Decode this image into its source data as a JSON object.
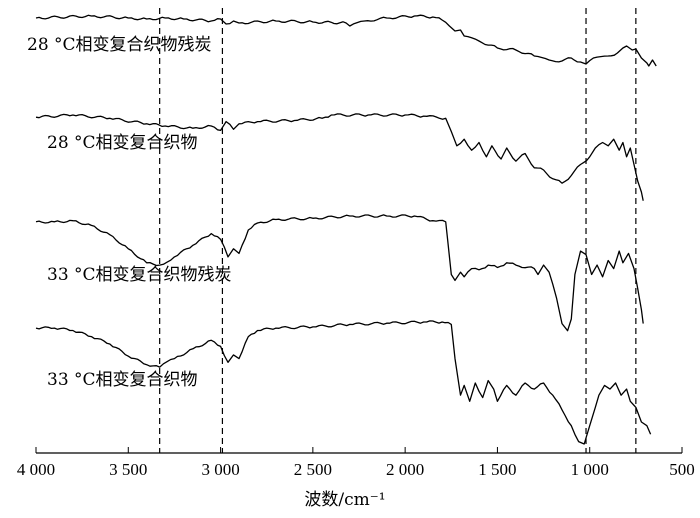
{
  "chart_data": {
    "type": "line",
    "xlabel": "波数/cm⁻¹",
    "ylabel": "",
    "xlim": [
      4000,
      500
    ],
    "xticks": [
      4000,
      3500,
      3000,
      2500,
      2000,
      1500,
      1000,
      500
    ],
    "xtick_labels": [
      "4 000",
      "3 500",
      "3 000",
      "2 500",
      "2 000",
      "1 500",
      "1 000",
      "500"
    ],
    "reference_lines_x": [
      3330,
      2990,
      1020,
      750
    ],
    "series": [
      {
        "name": "28 °C相变复合织物残炭",
        "points": [
          [
            4000,
            0.02
          ],
          [
            3700,
            0.0
          ],
          [
            3500,
            0.02
          ],
          [
            3400,
            0.03
          ],
          [
            3300,
            0.02
          ],
          [
            3200,
            0.03
          ],
          [
            3050,
            0.05
          ],
          [
            3000,
            0.03
          ],
          [
            2970,
            0.08
          ],
          [
            2930,
            0.05
          ],
          [
            2900,
            0.07
          ],
          [
            2700,
            0.05
          ],
          [
            2500,
            0.06
          ],
          [
            2320,
            0.07
          ],
          [
            2300,
            0.1
          ],
          [
            2220,
            0.05
          ],
          [
            2100,
            0.02
          ],
          [
            1950,
            0.0
          ],
          [
            1850,
            0.01
          ],
          [
            1800,
            0.04
          ],
          [
            1760,
            0.1
          ],
          [
            1730,
            0.15
          ],
          [
            1700,
            0.14
          ],
          [
            1680,
            0.2
          ],
          [
            1600,
            0.25
          ],
          [
            1500,
            0.32
          ],
          [
            1400,
            0.34
          ],
          [
            1300,
            0.4
          ],
          [
            1220,
            0.44
          ],
          [
            1150,
            0.45
          ],
          [
            1100,
            0.42
          ],
          [
            1050,
            0.46
          ],
          [
            1020,
            0.48
          ],
          [
            980,
            0.42
          ],
          [
            900,
            0.4
          ],
          [
            850,
            0.37
          ],
          [
            820,
            0.32
          ],
          [
            800,
            0.3
          ],
          [
            770,
            0.34
          ],
          [
            750,
            0.33
          ],
          [
            720,
            0.42
          ],
          [
            690,
            0.47
          ],
          [
            680,
            0.5
          ],
          [
            660,
            0.44
          ],
          [
            640,
            0.5
          ]
        ]
      },
      {
        "name": "28 °C相变复合织物",
        "points": [
          [
            4000,
            0.02
          ],
          [
            3800,
            0.0
          ],
          [
            3600,
            0.03
          ],
          [
            3400,
            0.08
          ],
          [
            3300,
            0.1
          ],
          [
            3150,
            0.12
          ],
          [
            3050,
            0.1
          ],
          [
            3000,
            0.14
          ],
          [
            2970,
            0.06
          ],
          [
            2930,
            0.13
          ],
          [
            2900,
            0.08
          ],
          [
            2800,
            0.06
          ],
          [
            2600,
            0.05
          ],
          [
            2450,
            0.03
          ],
          [
            2400,
            0.0
          ],
          [
            2200,
            0.0
          ],
          [
            2000,
            0.0
          ],
          [
            1900,
            0.01
          ],
          [
            1780,
            0.03
          ],
          [
            1750,
            0.15
          ],
          [
            1720,
            0.28
          ],
          [
            1680,
            0.22
          ],
          [
            1640,
            0.32
          ],
          [
            1600,
            0.25
          ],
          [
            1560,
            0.38
          ],
          [
            1530,
            0.28
          ],
          [
            1480,
            0.4
          ],
          [
            1450,
            0.3
          ],
          [
            1400,
            0.42
          ],
          [
            1350,
            0.35
          ],
          [
            1300,
            0.48
          ],
          [
            1250,
            0.5
          ],
          [
            1200,
            0.58
          ],
          [
            1150,
            0.62
          ],
          [
            1100,
            0.55
          ],
          [
            1050,
            0.45
          ],
          [
            1000,
            0.38
          ],
          [
            970,
            0.3
          ],
          [
            930,
            0.25
          ],
          [
            900,
            0.28
          ],
          [
            870,
            0.22
          ],
          [
            840,
            0.32
          ],
          [
            820,
            0.25
          ],
          [
            800,
            0.38
          ],
          [
            780,
            0.3
          ],
          [
            760,
            0.45
          ],
          [
            740,
            0.6
          ],
          [
            720,
            0.7
          ],
          [
            710,
            0.78
          ]
        ]
      },
      {
        "name": "33 °C相变复合织物残炭",
        "points": [
          [
            4000,
            0.05
          ],
          [
            3900,
            0.05
          ],
          [
            3800,
            0.04
          ],
          [
            3700,
            0.08
          ],
          [
            3600,
            0.16
          ],
          [
            3500,
            0.28
          ],
          [
            3400,
            0.4
          ],
          [
            3330,
            0.42
          ],
          [
            3250,
            0.35
          ],
          [
            3150,
            0.25
          ],
          [
            3050,
            0.15
          ],
          [
            3000,
            0.2
          ],
          [
            2960,
            0.35
          ],
          [
            2930,
            0.28
          ],
          [
            2900,
            0.32
          ],
          [
            2850,
            0.12
          ],
          [
            2800,
            0.06
          ],
          [
            2700,
            0.03
          ],
          [
            2500,
            0.02
          ],
          [
            2300,
            0.0
          ],
          [
            2100,
            0.0
          ],
          [
            1950,
            0.0
          ],
          [
            1850,
            0.04
          ],
          [
            1780,
            0.05
          ],
          [
            1770,
            0.2
          ],
          [
            1750,
            0.5
          ],
          [
            1730,
            0.55
          ],
          [
            1700,
            0.48
          ],
          [
            1680,
            0.52
          ],
          [
            1640,
            0.45
          ],
          [
            1600,
            0.46
          ],
          [
            1550,
            0.42
          ],
          [
            1500,
            0.44
          ],
          [
            1450,
            0.4
          ],
          [
            1400,
            0.42
          ],
          [
            1300,
            0.45
          ],
          [
            1280,
            0.5
          ],
          [
            1250,
            0.42
          ],
          [
            1220,
            0.48
          ],
          [
            1180,
            0.7
          ],
          [
            1150,
            0.92
          ],
          [
            1120,
            0.98
          ],
          [
            1100,
            0.88
          ],
          [
            1080,
            0.5
          ],
          [
            1050,
            0.3
          ],
          [
            1020,
            0.33
          ],
          [
            990,
            0.5
          ],
          [
            960,
            0.42
          ],
          [
            930,
            0.52
          ],
          [
            900,
            0.38
          ],
          [
            870,
            0.45
          ],
          [
            840,
            0.3
          ],
          [
            820,
            0.4
          ],
          [
            790,
            0.32
          ],
          [
            760,
            0.45
          ],
          [
            740,
            0.62
          ],
          [
            720,
            0.8
          ],
          [
            710,
            0.92
          ]
        ]
      },
      {
        "name": "33 °C相变复合织物",
        "points": [
          [
            4000,
            0.05
          ],
          [
            3900,
            0.05
          ],
          [
            3800,
            0.07
          ],
          [
            3700,
            0.12
          ],
          [
            3600,
            0.18
          ],
          [
            3500,
            0.28
          ],
          [
            3400,
            0.35
          ],
          [
            3330,
            0.37
          ],
          [
            3250,
            0.3
          ],
          [
            3150,
            0.22
          ],
          [
            3050,
            0.15
          ],
          [
            3000,
            0.2
          ],
          [
            2960,
            0.33
          ],
          [
            2930,
            0.27
          ],
          [
            2900,
            0.3
          ],
          [
            2850,
            0.12
          ],
          [
            2800,
            0.07
          ],
          [
            2700,
            0.05
          ],
          [
            2500,
            0.04
          ],
          [
            2300,
            0.02
          ],
          [
            2100,
            0.01
          ],
          [
            1900,
            0.0
          ],
          [
            1800,
            0.0
          ],
          [
            1750,
            0.02
          ],
          [
            1730,
            0.3
          ],
          [
            1700,
            0.6
          ],
          [
            1680,
            0.52
          ],
          [
            1650,
            0.65
          ],
          [
            1620,
            0.5
          ],
          [
            1580,
            0.62
          ],
          [
            1550,
            0.48
          ],
          [
            1520,
            0.55
          ],
          [
            1500,
            0.65
          ],
          [
            1450,
            0.52
          ],
          [
            1400,
            0.6
          ],
          [
            1350,
            0.5
          ],
          [
            1300,
            0.55
          ],
          [
            1250,
            0.5
          ],
          [
            1200,
            0.6
          ],
          [
            1150,
            0.72
          ],
          [
            1100,
            0.85
          ],
          [
            1060,
            0.98
          ],
          [
            1030,
            1.0
          ],
          [
            1000,
            0.85
          ],
          [
            970,
            0.7
          ],
          [
            950,
            0.6
          ],
          [
            920,
            0.52
          ],
          [
            890,
            0.55
          ],
          [
            860,
            0.5
          ],
          [
            830,
            0.6
          ],
          [
            800,
            0.55
          ],
          [
            780,
            0.65
          ],
          [
            750,
            0.7
          ],
          [
            720,
            0.82
          ],
          [
            690,
            0.85
          ],
          [
            670,
            0.92
          ]
        ]
      }
    ]
  }
}
